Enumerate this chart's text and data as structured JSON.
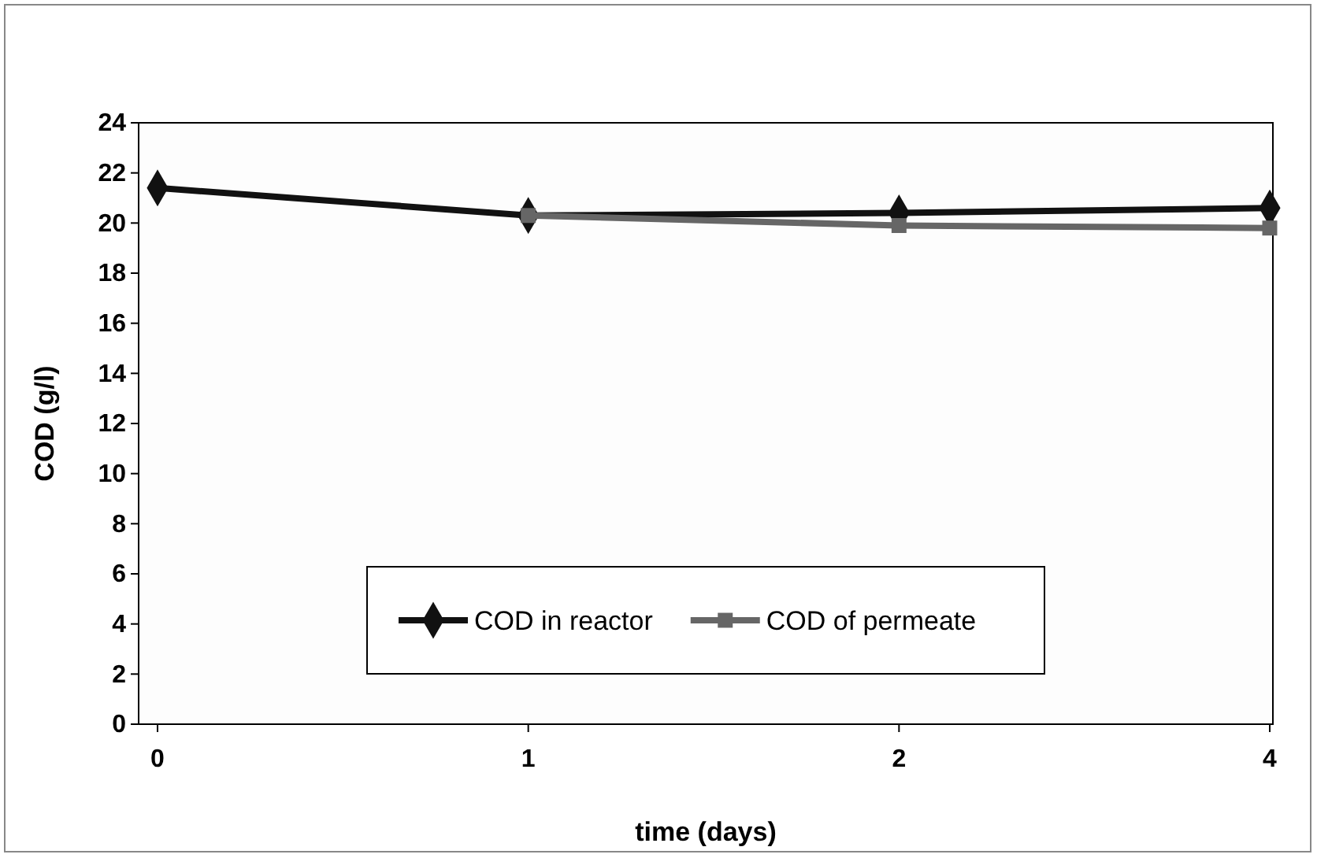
{
  "chart_data": {
    "type": "line",
    "xlabel": "time (days)",
    "ylabel": "COD (g/l)",
    "categories": [
      "0",
      "1",
      "2",
      "4"
    ],
    "series": [
      {
        "name": "COD in reactor",
        "color": "#111111",
        "marker": "diamond",
        "values": [
          21.4,
          20.3,
          20.4,
          20.6
        ]
      },
      {
        "name": "COD of permeate",
        "color": "#666666",
        "marker": "square",
        "values": [
          null,
          20.3,
          19.9,
          19.8
        ]
      }
    ],
    "ylim": [
      0,
      24
    ],
    "yticks": [
      0,
      2,
      4,
      6,
      8,
      10,
      12,
      14,
      16,
      18,
      20,
      22,
      24
    ],
    "grid": false,
    "legend": "bottom"
  }
}
